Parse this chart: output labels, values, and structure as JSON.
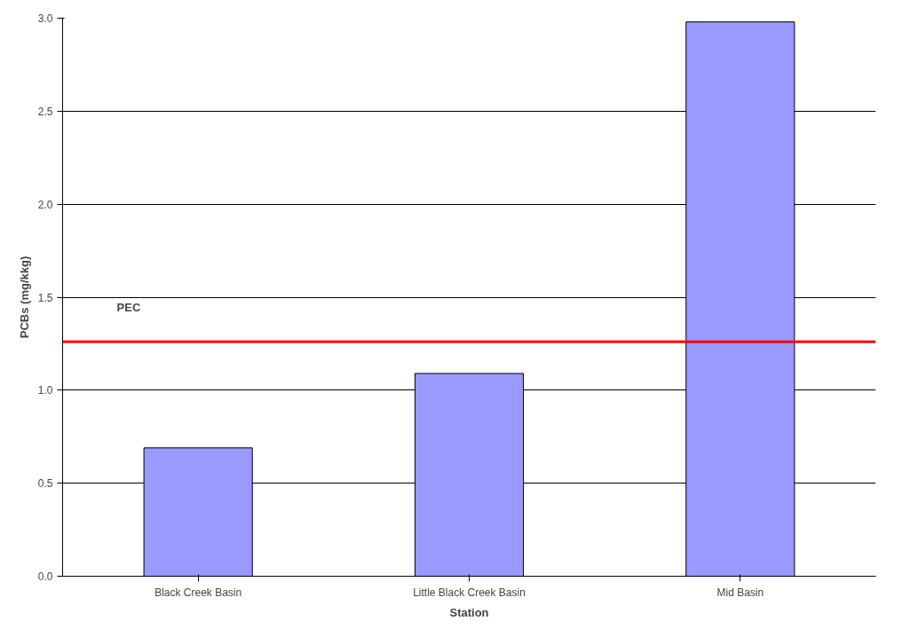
{
  "chart_data": {
    "type": "bar",
    "xlabel": "Station",
    "ylabel": "PCBs (mg/kkg)",
    "categories": [
      "Black Creek Basin",
      "Little Black Creek Basin",
      "Mid Basin"
    ],
    "values": [
      0.69,
      1.09,
      2.98
    ],
    "color": "#9999ff",
    "ylim": [
      0,
      3.0
    ],
    "yticks": [
      {
        "value": 0,
        "label": "0.0"
      },
      {
        "value": 0.5,
        "label": "0.5"
      },
      {
        "value": 1,
        "label": "1.0"
      },
      {
        "value": 1.5,
        "label": "1.5"
      },
      {
        "value": 2,
        "label": "2.0"
      },
      {
        "value": 2.5,
        "label": "2.5"
      },
      {
        "value": 3,
        "label": "3.0"
      }
    ],
    "grid": "y",
    "ref_lines": [
      {
        "axis": "y",
        "value": 1.26,
        "label": "PEC",
        "color": "#ff0000"
      }
    ]
  }
}
